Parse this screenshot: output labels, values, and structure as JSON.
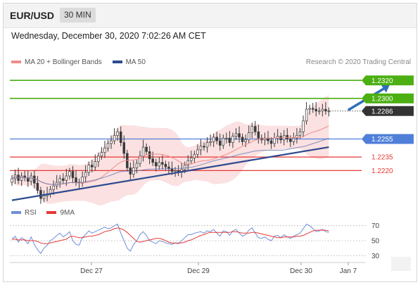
{
  "header": {
    "symbol": "EUR/USD",
    "interval": "30 MIN"
  },
  "datetime": "Wednesday, December 30, 2020 7:02:26 AM CET",
  "legend": {
    "ma20_label": "MA 20 + Bollinger Bands",
    "ma50_label": "MA 50",
    "credit": "Research © 2020 Trading Central"
  },
  "rsi_legend": {
    "rsi_label": "RSI",
    "ma_label": "9MA"
  },
  "colors": {
    "candle": "#3a3a3a",
    "bollinger": "#f7c9c9",
    "ma20": "#f08c8c",
    "ma50": "#4a6fb5",
    "trend": "#2c4a8f",
    "resistance": "#4caf12",
    "support_blue": "#4f7fd8",
    "support_red": "#e53935",
    "arrow": "#2e6fba",
    "rsi": "#6f8fd8",
    "rsi_ma": "#e53935"
  },
  "chart_data": {
    "type": "candlestick",
    "x_ticks": [
      "Dec 27",
      "Dec 29",
      "Dec 30",
      "Jan 7"
    ],
    "price_ylim": [
      1.2175,
      1.2335
    ],
    "levels": [
      {
        "value": "1.2320",
        "kind": "resistance"
      },
      {
        "value": "1.2300",
        "kind": "resistance"
      },
      {
        "value": "1.2286",
        "kind": "current"
      },
      {
        "value": "1.2255",
        "kind": "support_blue"
      },
      {
        "value": "1.2235",
        "kind": "support_red"
      },
      {
        "value": "1.2220",
        "kind": "support_red"
      }
    ],
    "trendline": [
      [
        0,
        1.2187
      ],
      [
        99,
        1.2246
      ]
    ],
    "forecast_arrow": [
      [
        105,
        1.2287
      ],
      [
        118,
        1.2315
      ]
    ],
    "closes": [
      1.2211,
      1.2215,
      1.2209,
      1.2214,
      1.2212,
      1.2208,
      1.2214,
      1.2206,
      1.2198,
      1.2189,
      1.2192,
      1.2194,
      1.2199,
      1.2203,
      1.2207,
      1.2211,
      1.2209,
      1.2214,
      1.2219,
      1.2212,
      1.2207,
      1.2206,
      1.2213,
      1.2218,
      1.2226,
      1.2224,
      1.223,
      1.2236,
      1.224,
      1.2245,
      1.225,
      1.2253,
      1.2259,
      1.2263,
      1.2251,
      1.2239,
      1.2223,
      1.2216,
      1.2223,
      1.2228,
      1.2236,
      1.2246,
      1.2241,
      1.2233,
      1.2229,
      1.2225,
      1.2229,
      1.2227,
      1.2224,
      1.2222,
      1.2219,
      1.222,
      1.2218,
      1.2221,
      1.2226,
      1.2231,
      1.2234,
      1.2238,
      1.2243,
      1.2247,
      1.2246,
      1.2251,
      1.2252,
      1.2257,
      1.2253,
      1.2248,
      1.2256,
      1.2256,
      1.2251,
      1.2258,
      1.2261,
      1.2257,
      1.2252,
      1.2254,
      1.2262,
      1.2269,
      1.2263,
      1.2256,
      1.2254,
      1.2256,
      1.2253,
      1.225,
      1.2256,
      1.2258,
      1.2254,
      1.2259,
      1.2255,
      1.2252,
      1.2256,
      1.2259,
      1.2263,
      1.2275,
      1.2288,
      1.2289,
      1.2288,
      1.2286,
      1.2286,
      1.2288,
      1.2286,
      1.2286
    ],
    "rsi_ylim": [
      20,
      80
    ],
    "rsi_ticks": [
      70,
      50,
      30
    ],
    "rsi": [
      52,
      56,
      48,
      54,
      51,
      46,
      55,
      45,
      38,
      33,
      40,
      44,
      50,
      53,
      57,
      60,
      55,
      58,
      62,
      50,
      45,
      44,
      54,
      58,
      63,
      60,
      62,
      64,
      66,
      68,
      66,
      67,
      70,
      72,
      60,
      50,
      40,
      36,
      45,
      50,
      58,
      62,
      57,
      50,
      48,
      46,
      50,
      49,
      47,
      46,
      45,
      47,
      46,
      50,
      54,
      58,
      58,
      60,
      61,
      62,
      60,
      63,
      62,
      65,
      60,
      56,
      63,
      62,
      57,
      63,
      65,
      60,
      56,
      58,
      64,
      67,
      60,
      54,
      53,
      55,
      52,
      50,
      56,
      57,
      54,
      58,
      55,
      53,
      56,
      58,
      60,
      66,
      72,
      70,
      66,
      62,
      63,
      65,
      62,
      61
    ],
    "rsi_ma": [
      52,
      52,
      51,
      51,
      51,
      50,
      50,
      50,
      49,
      47,
      46,
      46,
      47,
      48,
      49,
      50,
      51,
      52,
      55,
      56,
      55,
      54,
      54,
      55,
      56,
      56,
      57,
      58,
      60,
      62,
      63,
      64,
      66,
      67,
      66,
      64,
      61,
      57,
      53,
      49,
      48,
      49,
      50,
      51,
      52,
      53,
      53,
      52,
      50,
      48,
      47,
      47,
      47,
      47,
      48,
      50,
      51,
      53,
      55,
      57,
      58,
      60,
      61,
      61,
      61,
      61,
      61,
      61,
      61,
      62,
      62,
      61,
      60,
      60,
      60,
      61,
      61,
      60,
      59,
      58,
      57,
      56,
      55,
      54,
      54,
      55,
      55,
      55,
      55,
      56,
      56,
      57,
      59,
      61,
      63,
      64,
      64,
      64,
      64,
      63
    ]
  }
}
